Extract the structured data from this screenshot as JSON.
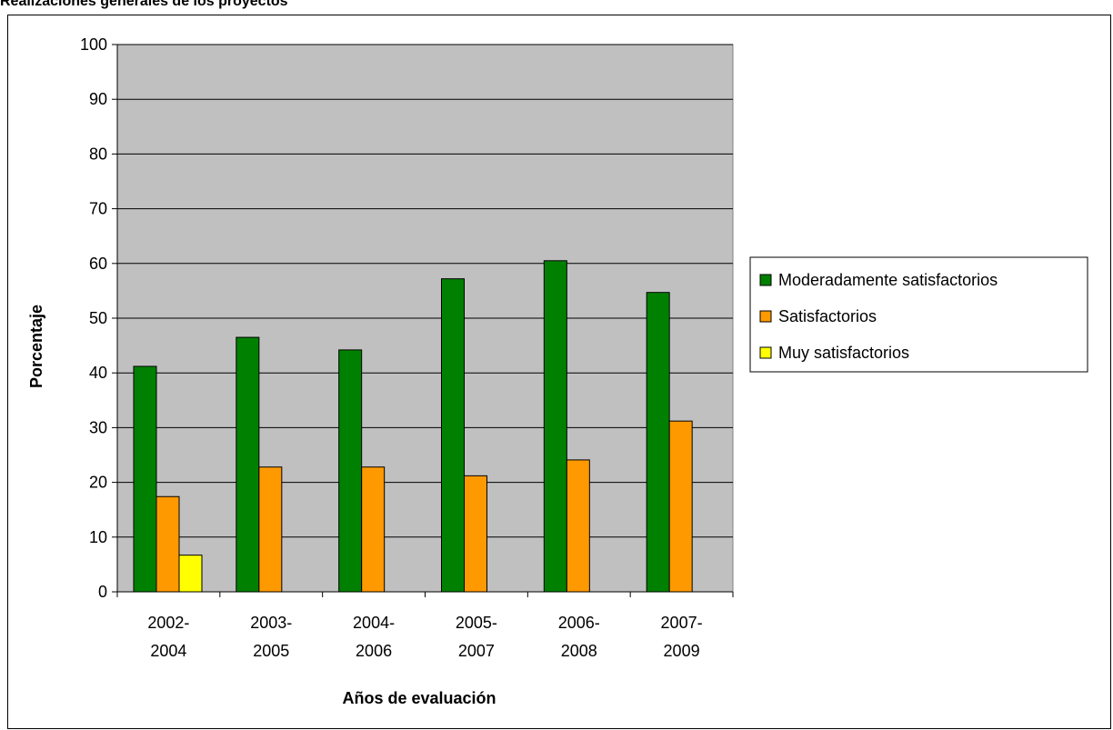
{
  "page": {
    "title": "Realizaciones generales de los proyectos"
  },
  "chart_data": {
    "type": "bar",
    "title": "",
    "xlabel": "Años de evaluación",
    "ylabel": "Porcentaje",
    "ylim": [
      0,
      100
    ],
    "yticks": [
      0,
      10,
      20,
      30,
      40,
      50,
      60,
      70,
      80,
      90,
      100
    ],
    "grid": true,
    "legend_position": "right",
    "plot_background": "#c0c0c0",
    "categories": [
      [
        "2002-",
        "2004"
      ],
      [
        "2003-",
        "2005"
      ],
      [
        "2004-",
        "2006"
      ],
      [
        "2005-",
        "2007"
      ],
      [
        "2006-",
        "2008"
      ],
      [
        "2007-",
        "2009"
      ]
    ],
    "series": [
      {
        "name": "Moderadamente satisfactorios",
        "color": "#008000",
        "values": [
          41.2,
          46.5,
          44.2,
          57.2,
          60.5,
          54.7
        ]
      },
      {
        "name": "Satisfactorios",
        "color": "#ff9900",
        "values": [
          17.4,
          22.8,
          22.8,
          21.2,
          24.1,
          31.2
        ]
      },
      {
        "name": "Muy satisfactorios",
        "color": "#ffff00",
        "values": [
          6.7,
          0,
          0,
          0,
          0,
          0
        ]
      }
    ]
  }
}
